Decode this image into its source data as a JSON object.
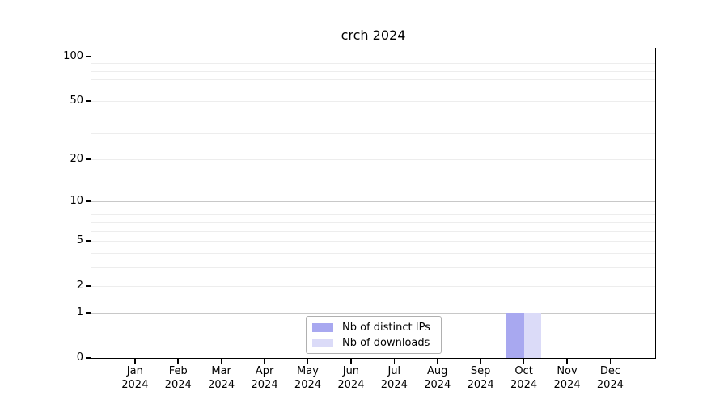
{
  "chart_data": {
    "type": "bar",
    "title": "crch 2024",
    "xlabel": "",
    "ylabel": "",
    "yscale": "log1p",
    "ylim": [
      0,
      113
    ],
    "grid": "both",
    "legend_position": "lower center",
    "months": [
      "Jan",
      "Feb",
      "Mar",
      "Apr",
      "May",
      "Jun",
      "Jul",
      "Aug",
      "Sep",
      "Oct",
      "Nov",
      "Dec"
    ],
    "year_label": "2024",
    "yticks": [
      0,
      1,
      2,
      5,
      10,
      20,
      50,
      100
    ],
    "grid_major": [
      1,
      10,
      100
    ],
    "grid_minor": [
      2,
      3,
      4,
      5,
      6,
      7,
      8,
      9,
      20,
      30,
      40,
      50,
      60,
      70,
      80,
      90
    ],
    "series": [
      {
        "name": "Nb of distinct IPs",
        "color": "#a8a8f0",
        "values": [
          0,
          0,
          0,
          0,
          0,
          0,
          0,
          0,
          0,
          1,
          0,
          0
        ]
      },
      {
        "name": "Nb of downloads",
        "color": "#dbdbf8",
        "values": [
          0,
          0,
          0,
          0,
          0,
          0,
          0,
          0,
          0,
          1,
          0,
          0
        ]
      }
    ]
  },
  "colors": {
    "background": "#ffffff",
    "axis": "#000000",
    "grid_major": "#c8c8c8",
    "grid_minor": "#ededed",
    "legend_border": "#b0b0b0",
    "text": "#000000"
  }
}
